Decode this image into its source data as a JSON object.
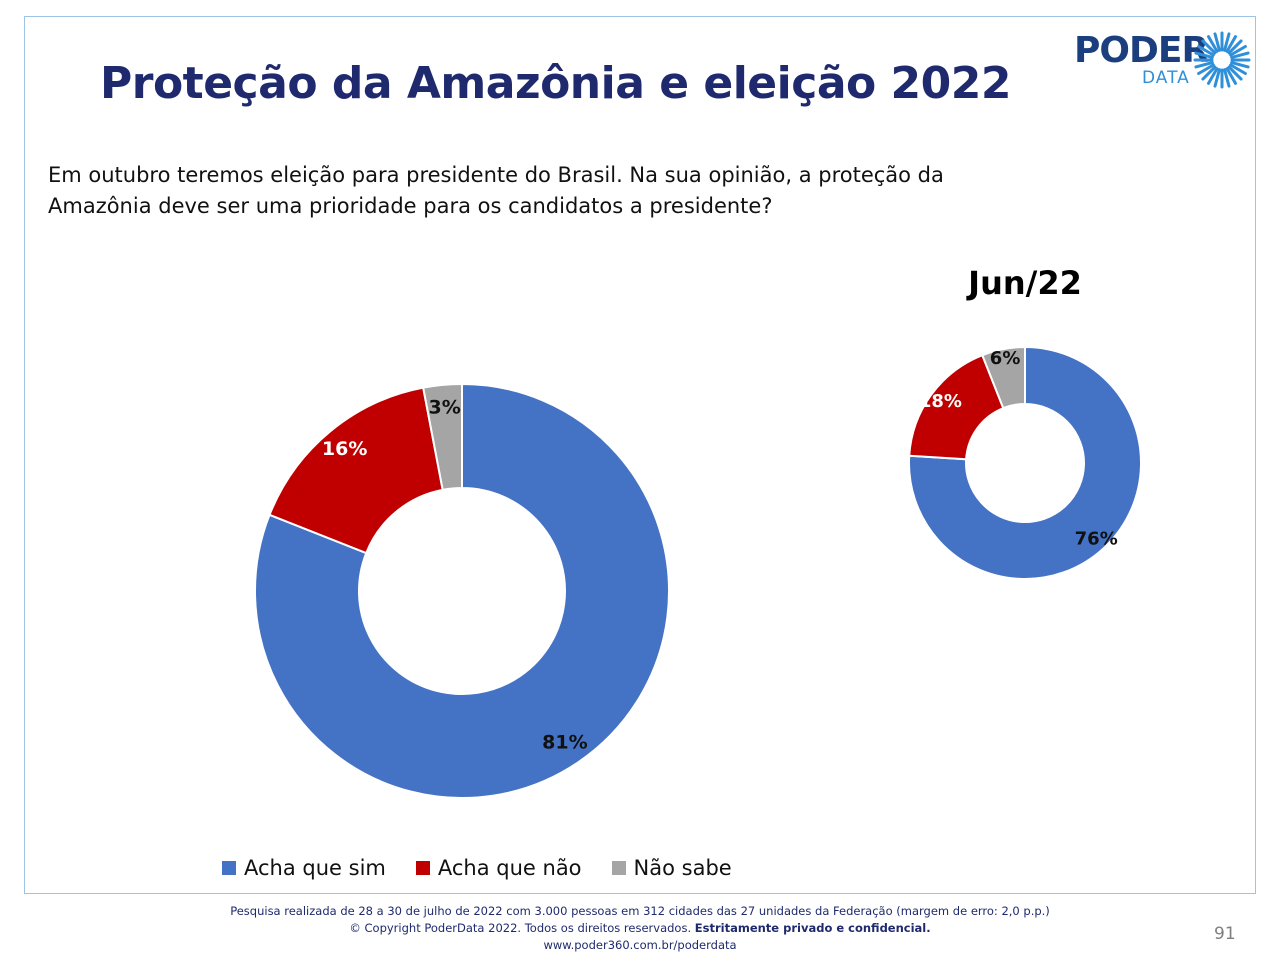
{
  "title": "Proteção da Amazônia e eleição 2022",
  "logo": {
    "brand": "PODER",
    "sub": "DATA"
  },
  "question": "Em outubro teremos eleição para presidente do Brasil. Na sua opinião, a proteção da Amazônia deve ser uma prioridade para os candidatos a presidente?",
  "chart_data": [
    {
      "type": "pie",
      "variant": "donut",
      "title": "",
      "categories": [
        "Acha que sim",
        "Acha que não",
        "Não sabe"
      ],
      "values": [
        81,
        16,
        3
      ],
      "labels": [
        "81%",
        "16%",
        "3%"
      ],
      "colors": [
        "#4472c4",
        "#c00000",
        "#a5a5a5"
      ]
    },
    {
      "type": "pie",
      "variant": "donut",
      "title": "Jun/22",
      "categories": [
        "Acha que sim",
        "Acha que não",
        "Não sabe"
      ],
      "values": [
        76,
        18,
        6
      ],
      "labels": [
        "76%",
        "18%",
        "6%"
      ],
      "colors": [
        "#4472c4",
        "#c00000",
        "#a5a5a5"
      ]
    }
  ],
  "legend": {
    "position": "bottom",
    "items": [
      {
        "label": "Acha que sim",
        "color": "#4472c4"
      },
      {
        "label": "Acha que não",
        "color": "#c00000"
      },
      {
        "label": "Não sabe",
        "color": "#a5a5a5"
      }
    ]
  },
  "footer": {
    "line1": "Pesquisa realizada de 28 a 30 de julho de 2022 com 3.000 pessoas em 312 cidades das 27 unidades da Federação (margem de erro: 2,0 p.p.)",
    "line2_a": "© Copyright PoderData 2022. Todos os direitos reservados. ",
    "line2_b": "Estritamente privado e confidencial.",
    "line3": "www.poder360.com.br/poderdata"
  },
  "page_number": "91"
}
